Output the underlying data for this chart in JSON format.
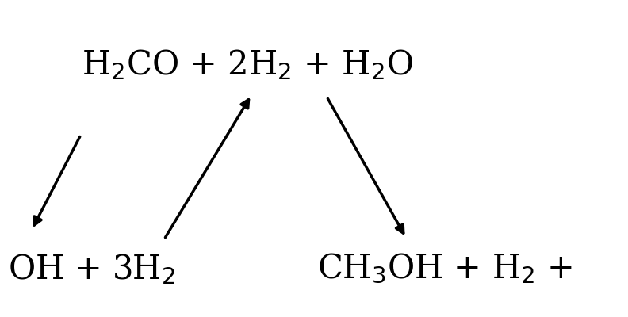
{
  "top_label": "H$_2$CO + 2H$_2$ + H$_2$O",
  "bottom_left_label": "OH + 3H$_2$",
  "bottom_center_label": "CH$_3$OH + H$_2$ +",
  "bg_color": "#ffffff",
  "text_color": "#000000",
  "fontsize": 30
}
